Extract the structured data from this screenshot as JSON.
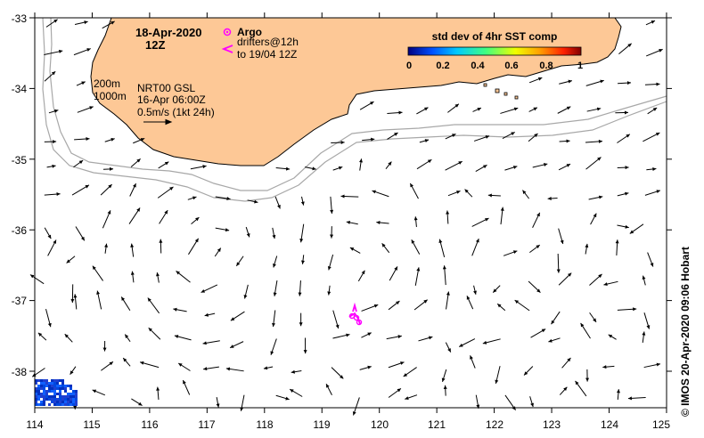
{
  "title": {
    "date": "18-Apr-2020",
    "time": "12Z"
  },
  "legend": {
    "argo_label": "Argo",
    "drifters_label": "drifters@12h",
    "drifters_sub": "to 19/04 12Z",
    "argo_color": "#ff00ff",
    "drifter_color": "#ff00ff"
  },
  "info": {
    "contours": [
      "200m",
      "1000m"
    ],
    "product": "NRT00 GSL",
    "product_date": "16-Apr 06:00Z",
    "scale_label": "0.5m/s (1kt 24h)"
  },
  "colorbar": {
    "title": "std dev of 4hr SST comp",
    "ticks": [
      "0",
      "0.2",
      "0.4",
      "0.6",
      "0.8",
      "1"
    ],
    "colors": [
      "#000080",
      "#0050ff",
      "#00c8ff",
      "#40ff80",
      "#f0ff00",
      "#ffa000",
      "#ff2000",
      "#800000"
    ]
  },
  "axes": {
    "x_ticks": [
      "114",
      "115",
      "116",
      "117",
      "118",
      "119",
      "120",
      "121",
      "122",
      "123",
      "124",
      "125"
    ],
    "y_ticks": [
      "-33",
      "-34",
      "-35",
      "-36",
      "-37",
      "-38"
    ],
    "lon_range": [
      114,
      125
    ],
    "lat_range": [
      -38.5,
      -33
    ]
  },
  "credit": "© IMOS 20-Apr-2020 09:06 Hobart",
  "colors": {
    "land": "#fdc896",
    "coast": "#000000",
    "isobath": "#a0a0a0",
    "arrow": "#000000"
  }
}
